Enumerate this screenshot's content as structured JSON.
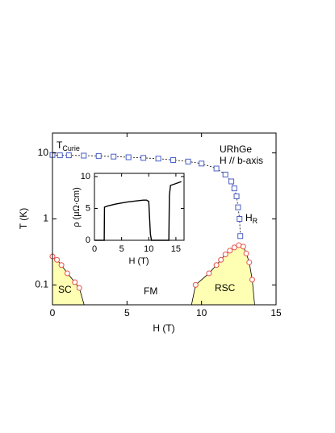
{
  "chart_data": [
    {
      "type": "line",
      "xlabel": "H (T)",
      "ylabel": "T (K)",
      "xlim": [
        0,
        15
      ],
      "ylim": [
        0.05,
        20
      ],
      "log_y": true,
      "xticks": [
        0,
        5,
        10,
        15
      ],
      "yticks": [
        0.1,
        1,
        10
      ],
      "annotations": [
        {
          "text": "T",
          "sub": "Curie"
        },
        {
          "text": "URhGe"
        },
        {
          "text": "H // b-axis"
        },
        {
          "text": "H",
          "sub": "R"
        },
        {
          "text": "SC"
        },
        {
          "text": "FM"
        },
        {
          "text": "RSC"
        }
      ],
      "series": [
        {
          "marker": "square",
          "color": "#4a5fc8",
          "line": "dashed",
          "x": [
            0,
            0.5,
            1.1,
            2.1,
            3.1,
            4.1,
            5.1,
            6.1,
            7.1,
            8.1,
            9.1,
            10.0,
            11.0,
            11.6,
            12.0,
            12.2,
            12.35,
            12.45,
            12.55,
            12.6
          ],
          "values": [
            9.3,
            9.2,
            9.2,
            9.1,
            9.0,
            8.8,
            8.6,
            8.4,
            8.2,
            7.8,
            7.4,
            6.9,
            5.8,
            4.7,
            3.7,
            2.9,
            2.2,
            1.5,
            1.0,
            0.55
          ]
        },
        {
          "marker": "circle",
          "color": "#e8504a",
          "fill": "#ffffb3",
          "x": [
            0,
            0.3,
            0.6,
            1.0,
            1.5,
            1.8
          ],
          "values": [
            0.27,
            0.24,
            0.2,
            0.15,
            0.11,
            0.09
          ]
        },
        {
          "marker": "circle",
          "color": "#e8504a",
          "fill": "#ffffb3",
          "x": [
            9.6,
            10.5,
            11.0,
            11.3,
            11.6,
            11.9,
            12.2,
            12.5,
            12.8,
            13.0,
            13.2,
            13.4
          ],
          "values": [
            0.1,
            0.15,
            0.2,
            0.24,
            0.29,
            0.33,
            0.37,
            0.4,
            0.38,
            0.3,
            0.22,
            0.12
          ]
        }
      ]
    },
    {
      "type": "line",
      "xlabel": "H (T)",
      "ylabel": "ρ (μΩ·cm)",
      "xlim": [
        0,
        16.5
      ],
      "ylim": [
        0,
        10.5
      ],
      "xticks": [
        0,
        5,
        10,
        15
      ],
      "yticks": [
        0,
        5,
        10
      ],
      "series": [
        {
          "color": "#000000",
          "x": [
            0,
            1.8,
            1.85,
            2.5,
            4,
            6,
            8,
            9,
            9.6,
            10.0,
            10.3,
            10.5,
            13.7,
            13.8,
            14.0,
            15,
            16
          ],
          "values": [
            0,
            0,
            5.2,
            5.4,
            5.7,
            6.0,
            6.2,
            6.3,
            6.3,
            6.1,
            1,
            0,
            0,
            7,
            8.6,
            8.9,
            9.2
          ]
        }
      ]
    }
  ]
}
